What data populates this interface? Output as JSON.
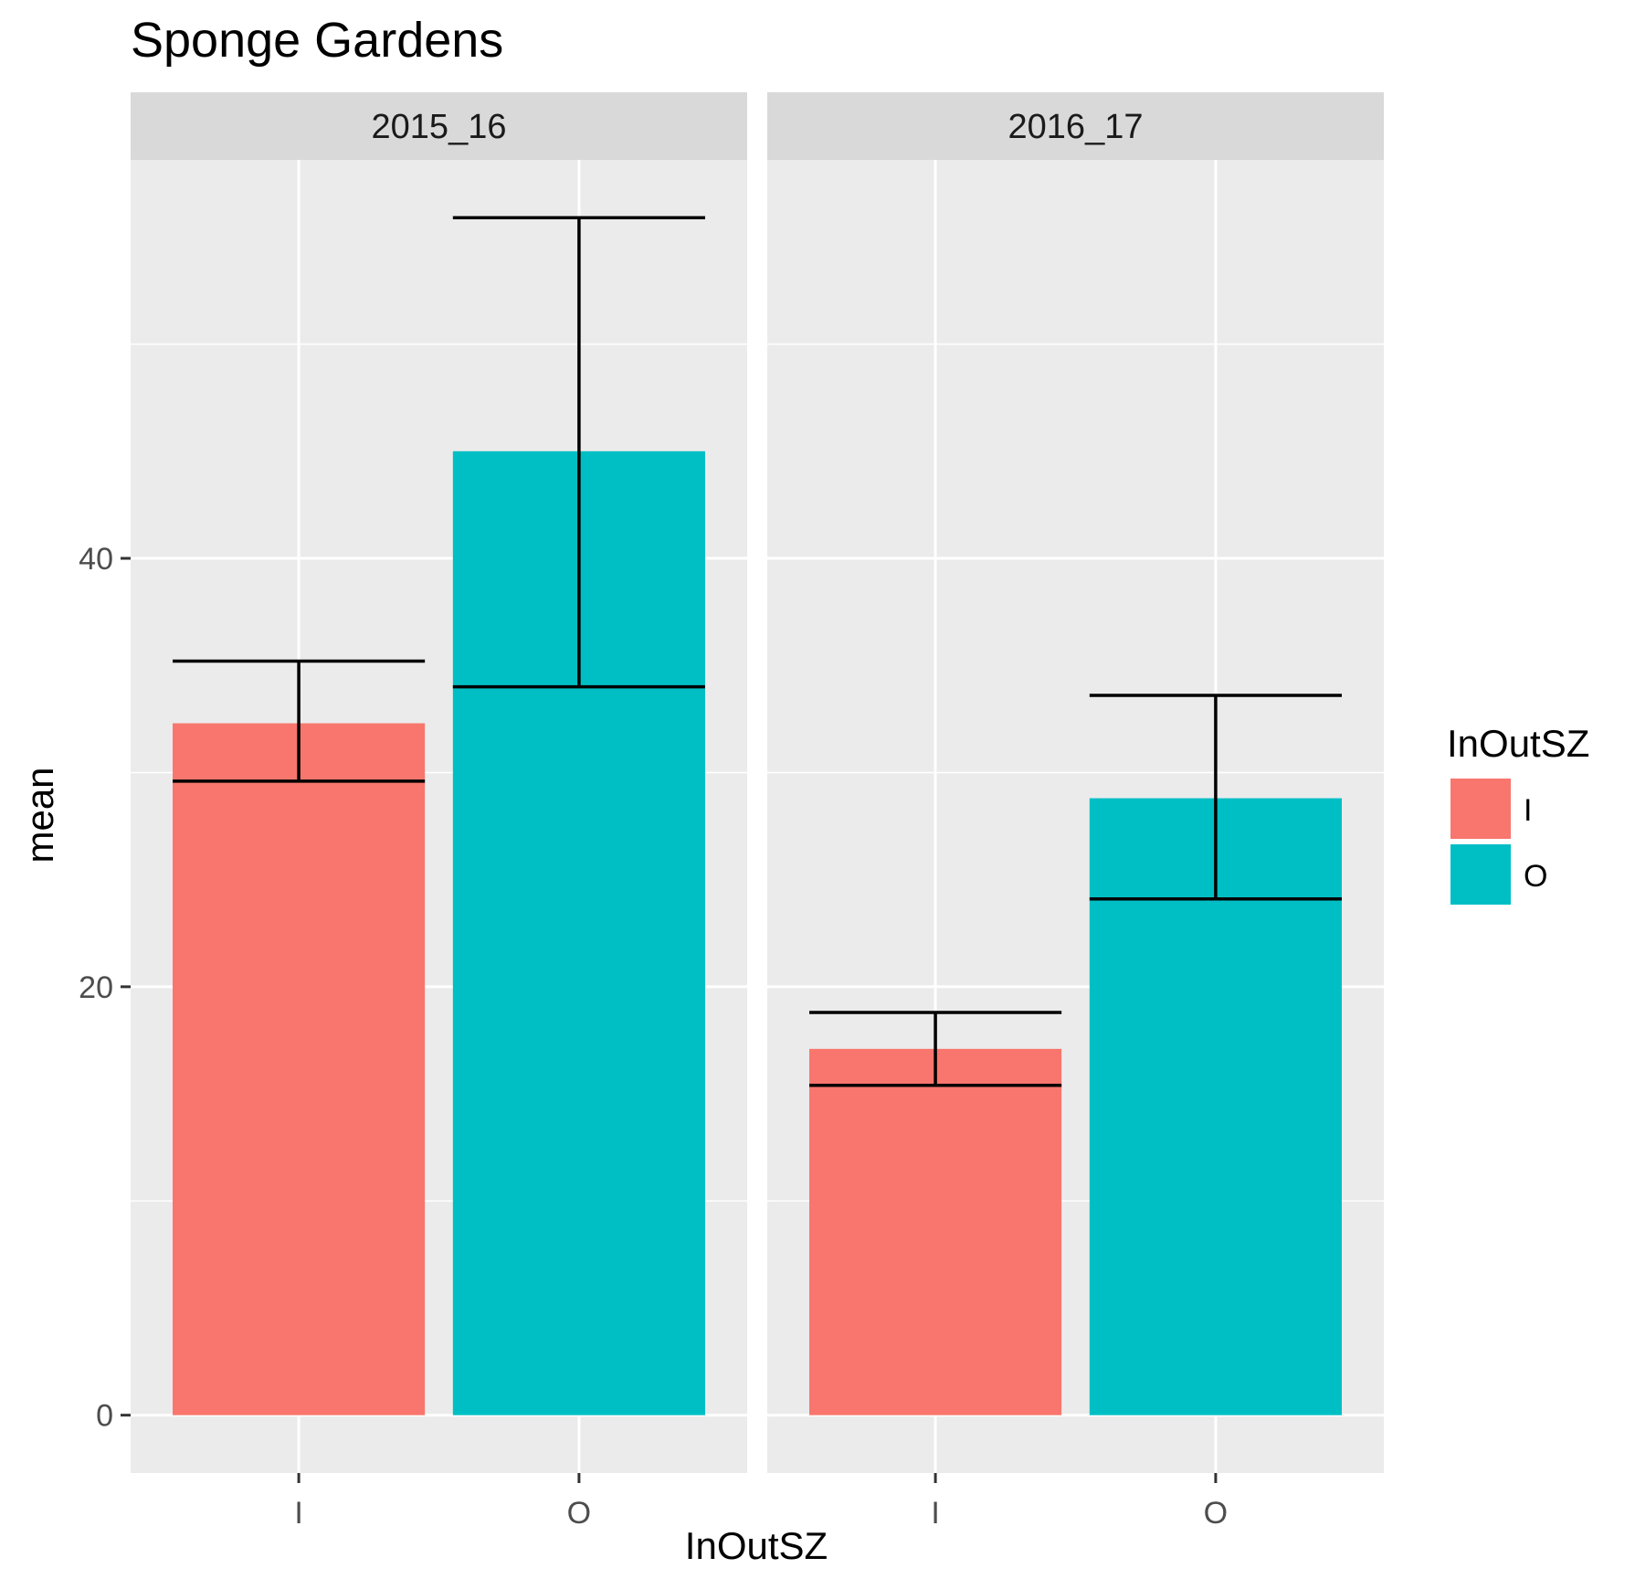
{
  "chart_data": {
    "type": "bar",
    "title": "Sponge Gardens",
    "xlabel": "InOutSZ",
    "ylabel": "mean",
    "ylim": [
      -2.7,
      58.6
    ],
    "yticks": [
      0,
      20,
      40
    ],
    "grid": true,
    "legend": {
      "title": "InOutSZ",
      "position": "right",
      "entries": [
        {
          "label": "I",
          "color": "#F8766D"
        },
        {
          "label": "O",
          "color": "#00BFC4"
        }
      ]
    },
    "categories": [
      "I",
      "O"
    ],
    "panels": [
      {
        "label": "2015_16",
        "bars": [
          {
            "category": "I",
            "value": 32.3,
            "err_low": 29.6,
            "err_high": 35.2
          },
          {
            "category": "O",
            "value": 45.0,
            "err_low": 34.0,
            "err_high": 55.9
          }
        ]
      },
      {
        "label": "2016_17",
        "bars": [
          {
            "category": "I",
            "value": 17.1,
            "err_low": 15.4,
            "err_high": 18.8
          },
          {
            "category": "O",
            "value": 28.8,
            "err_low": 24.1,
            "err_high": 33.6
          }
        ]
      }
    ],
    "colors": {
      "panel_bg": "#EBEBEB",
      "strip_bg": "#D9D9D9",
      "grid": "#FFFFFF",
      "errorbar": "#000000"
    }
  }
}
